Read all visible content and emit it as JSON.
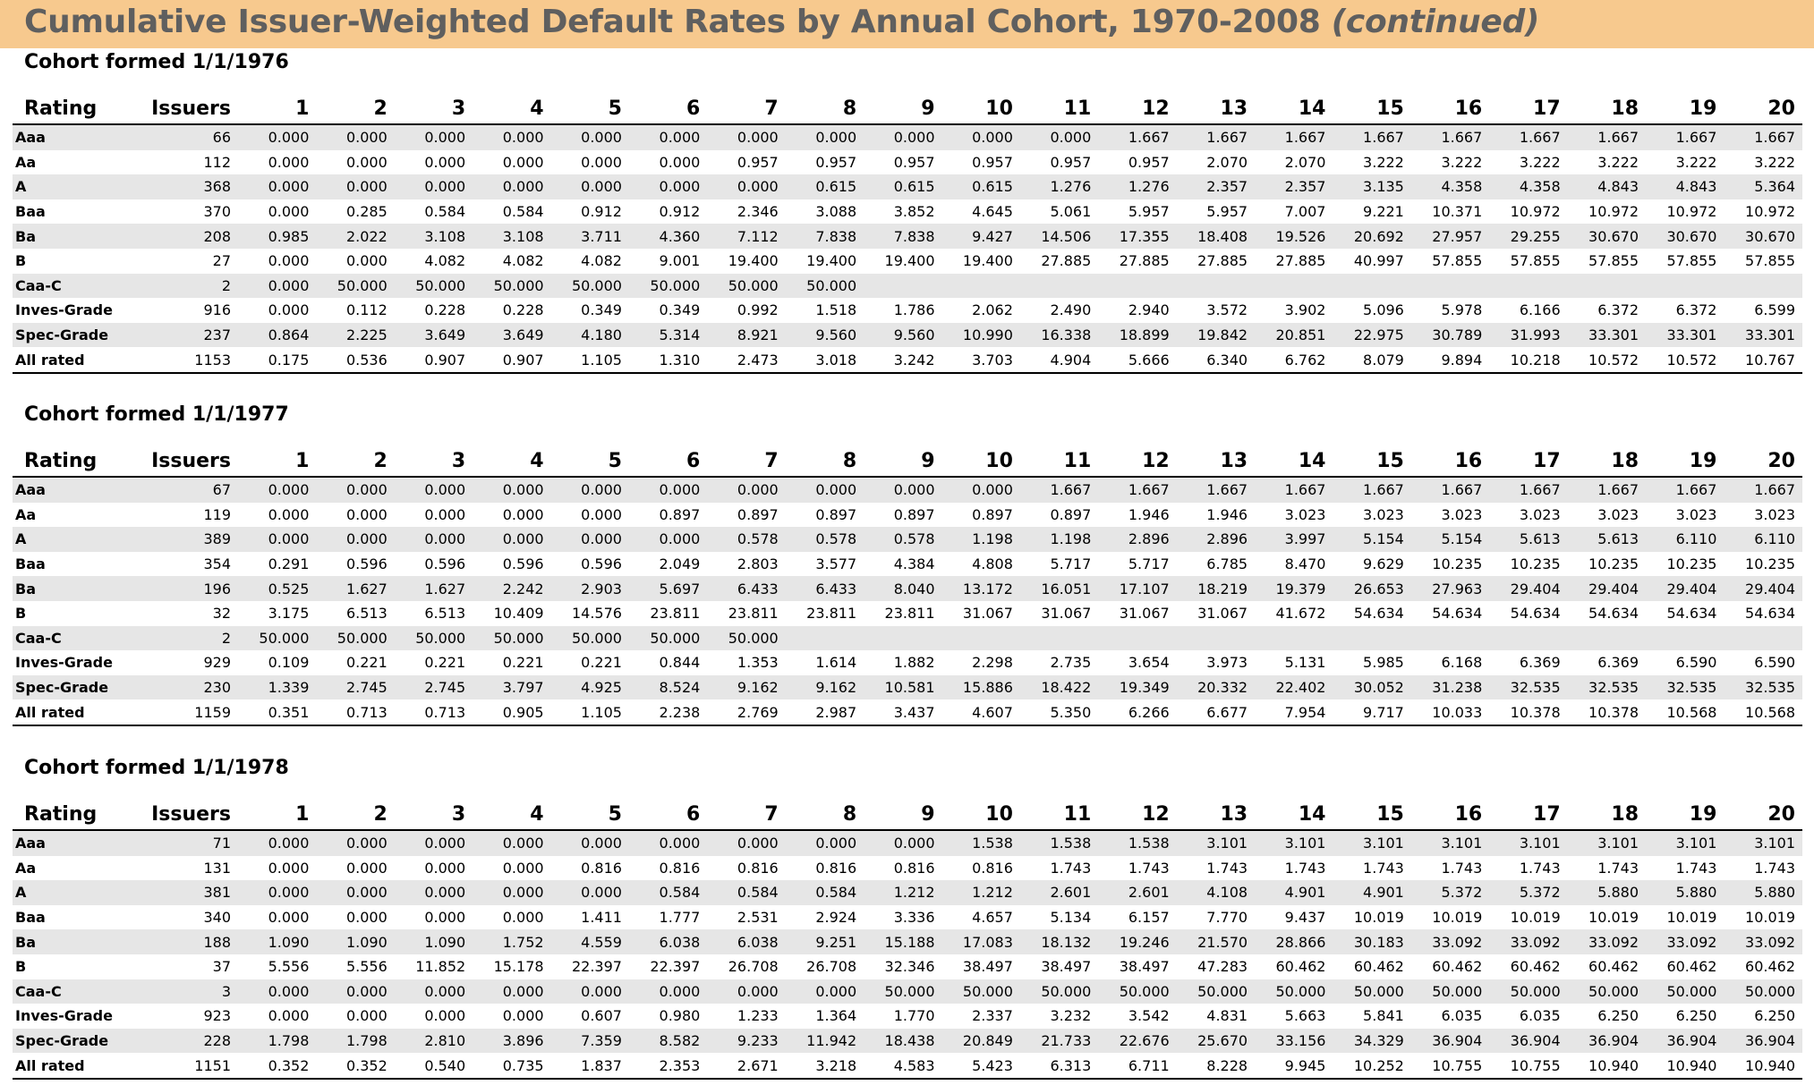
{
  "header": {
    "title": "Cumulative Issuer-Weighted Default Rates by Annual Cohort, 1970-2008",
    "title_suffix": "(continued)"
  },
  "columns": {
    "rating": "Rating",
    "issuers": "Issuers",
    "years": [
      "1",
      "2",
      "3",
      "4",
      "5",
      "6",
      "7",
      "8",
      "9",
      "10",
      "11",
      "12",
      "13",
      "14",
      "15",
      "16",
      "17",
      "18",
      "19",
      "20"
    ]
  },
  "cohorts": [
    {
      "title": "Cohort formed 1/1/1976",
      "rows": [
        {
          "rating": "Aaa",
          "issuers": "66",
          "values": [
            "0.000",
            "0.000",
            "0.000",
            "0.000",
            "0.000",
            "0.000",
            "0.000",
            "0.000",
            "0.000",
            "0.000",
            "0.000",
            "1.667",
            "1.667",
            "1.667",
            "1.667",
            "1.667",
            "1.667",
            "1.667",
            "1.667",
            "1.667"
          ]
        },
        {
          "rating": "Aa",
          "issuers": "112",
          "values": [
            "0.000",
            "0.000",
            "0.000",
            "0.000",
            "0.000",
            "0.000",
            "0.957",
            "0.957",
            "0.957",
            "0.957",
            "0.957",
            "0.957",
            "2.070",
            "2.070",
            "3.222",
            "3.222",
            "3.222",
            "3.222",
            "3.222",
            "3.222"
          ]
        },
        {
          "rating": "A",
          "issuers": "368",
          "values": [
            "0.000",
            "0.000",
            "0.000",
            "0.000",
            "0.000",
            "0.000",
            "0.000",
            "0.615",
            "0.615",
            "0.615",
            "1.276",
            "1.276",
            "2.357",
            "2.357",
            "3.135",
            "4.358",
            "4.358",
            "4.843",
            "4.843",
            "5.364"
          ]
        },
        {
          "rating": "Baa",
          "issuers": "370",
          "values": [
            "0.000",
            "0.285",
            "0.584",
            "0.584",
            "0.912",
            "0.912",
            "2.346",
            "3.088",
            "3.852",
            "4.645",
            "5.061",
            "5.957",
            "5.957",
            "7.007",
            "9.221",
            "10.371",
            "10.972",
            "10.972",
            "10.972",
            "10.972"
          ]
        },
        {
          "rating": "Ba",
          "issuers": "208",
          "values": [
            "0.985",
            "2.022",
            "3.108",
            "3.108",
            "3.711",
            "4.360",
            "7.112",
            "7.838",
            "7.838",
            "9.427",
            "14.506",
            "17.355",
            "18.408",
            "19.526",
            "20.692",
            "27.957",
            "29.255",
            "30.670",
            "30.670",
            "30.670"
          ]
        },
        {
          "rating": "B",
          "issuers": "27",
          "values": [
            "0.000",
            "0.000",
            "4.082",
            "4.082",
            "4.082",
            "9.001",
            "19.400",
            "19.400",
            "19.400",
            "19.400",
            "27.885",
            "27.885",
            "27.885",
            "27.885",
            "40.997",
            "57.855",
            "57.855",
            "57.855",
            "57.855",
            "57.855"
          ]
        },
        {
          "rating": "Caa-C",
          "issuers": "2",
          "values": [
            "0.000",
            "50.000",
            "50.000",
            "50.000",
            "50.000",
            "50.000",
            "50.000",
            "50.000",
            "",
            "",
            "",
            "",
            "",
            "",
            "",
            "",
            "",
            "",
            "",
            ""
          ]
        },
        {
          "rating": "Inves-Grade",
          "issuers": "916",
          "values": [
            "0.000",
            "0.112",
            "0.228",
            "0.228",
            "0.349",
            "0.349",
            "0.992",
            "1.518",
            "1.786",
            "2.062",
            "2.490",
            "2.940",
            "3.572",
            "3.902",
            "5.096",
            "5.978",
            "6.166",
            "6.372",
            "6.372",
            "6.599"
          ]
        },
        {
          "rating": "Spec-Grade",
          "issuers": "237",
          "values": [
            "0.864",
            "2.225",
            "3.649",
            "3.649",
            "4.180",
            "5.314",
            "8.921",
            "9.560",
            "9.560",
            "10.990",
            "16.338",
            "18.899",
            "19.842",
            "20.851",
            "22.975",
            "30.789",
            "31.993",
            "33.301",
            "33.301",
            "33.301"
          ]
        },
        {
          "rating": "All rated",
          "issuers": "1153",
          "values": [
            "0.175",
            "0.536",
            "0.907",
            "0.907",
            "1.105",
            "1.310",
            "2.473",
            "3.018",
            "3.242",
            "3.703",
            "4.904",
            "5.666",
            "6.340",
            "6.762",
            "8.079",
            "9.894",
            "10.218",
            "10.572",
            "10.572",
            "10.767"
          ]
        }
      ]
    },
    {
      "title": "Cohort formed 1/1/1977",
      "rows": [
        {
          "rating": "Aaa",
          "issuers": "67",
          "values": [
            "0.000",
            "0.000",
            "0.000",
            "0.000",
            "0.000",
            "0.000",
            "0.000",
            "0.000",
            "0.000",
            "0.000",
            "1.667",
            "1.667",
            "1.667",
            "1.667",
            "1.667",
            "1.667",
            "1.667",
            "1.667",
            "1.667",
            "1.667"
          ]
        },
        {
          "rating": "Aa",
          "issuers": "119",
          "values": [
            "0.000",
            "0.000",
            "0.000",
            "0.000",
            "0.000",
            "0.897",
            "0.897",
            "0.897",
            "0.897",
            "0.897",
            "0.897",
            "1.946",
            "1.946",
            "3.023",
            "3.023",
            "3.023",
            "3.023",
            "3.023",
            "3.023",
            "3.023"
          ]
        },
        {
          "rating": "A",
          "issuers": "389",
          "values": [
            "0.000",
            "0.000",
            "0.000",
            "0.000",
            "0.000",
            "0.000",
            "0.578",
            "0.578",
            "0.578",
            "1.198",
            "1.198",
            "2.896",
            "2.896",
            "3.997",
            "5.154",
            "5.154",
            "5.613",
            "5.613",
            "6.110",
            "6.110"
          ]
        },
        {
          "rating": "Baa",
          "issuers": "354",
          "values": [
            "0.291",
            "0.596",
            "0.596",
            "0.596",
            "0.596",
            "2.049",
            "2.803",
            "3.577",
            "4.384",
            "4.808",
            "5.717",
            "5.717",
            "6.785",
            "8.470",
            "9.629",
            "10.235",
            "10.235",
            "10.235",
            "10.235",
            "10.235"
          ]
        },
        {
          "rating": "Ba",
          "issuers": "196",
          "values": [
            "0.525",
            "1.627",
            "1.627",
            "2.242",
            "2.903",
            "5.697",
            "6.433",
            "6.433",
            "8.040",
            "13.172",
            "16.051",
            "17.107",
            "18.219",
            "19.379",
            "26.653",
            "27.963",
            "29.404",
            "29.404",
            "29.404",
            "29.404"
          ]
        },
        {
          "rating": "B",
          "issuers": "32",
          "values": [
            "3.175",
            "6.513",
            "6.513",
            "10.409",
            "14.576",
            "23.811",
            "23.811",
            "23.811",
            "23.811",
            "31.067",
            "31.067",
            "31.067",
            "31.067",
            "41.672",
            "54.634",
            "54.634",
            "54.634",
            "54.634",
            "54.634",
            "54.634"
          ]
        },
        {
          "rating": "Caa-C",
          "issuers": "2",
          "values": [
            "50.000",
            "50.000",
            "50.000",
            "50.000",
            "50.000",
            "50.000",
            "50.000",
            "",
            "",
            "",
            "",
            "",
            "",
            "",
            "",
            "",
            "",
            "",
            "",
            ""
          ]
        },
        {
          "rating": "Inves-Grade",
          "issuers": "929",
          "values": [
            "0.109",
            "0.221",
            "0.221",
            "0.221",
            "0.221",
            "0.844",
            "1.353",
            "1.614",
            "1.882",
            "2.298",
            "2.735",
            "3.654",
            "3.973",
            "5.131",
            "5.985",
            "6.168",
            "6.369",
            "6.369",
            "6.590",
            "6.590"
          ]
        },
        {
          "rating": "Spec-Grade",
          "issuers": "230",
          "values": [
            "1.339",
            "2.745",
            "2.745",
            "3.797",
            "4.925",
            "8.524",
            "9.162",
            "9.162",
            "10.581",
            "15.886",
            "18.422",
            "19.349",
            "20.332",
            "22.402",
            "30.052",
            "31.238",
            "32.535",
            "32.535",
            "32.535",
            "32.535"
          ]
        },
        {
          "rating": "All rated",
          "issuers": "1159",
          "values": [
            "0.351",
            "0.713",
            "0.713",
            "0.905",
            "1.105",
            "2.238",
            "2.769",
            "2.987",
            "3.437",
            "4.607",
            "5.350",
            "6.266",
            "6.677",
            "7.954",
            "9.717",
            "10.033",
            "10.378",
            "10.378",
            "10.568",
            "10.568"
          ]
        }
      ]
    },
    {
      "title": "Cohort formed 1/1/1978",
      "rows": [
        {
          "rating": "Aaa",
          "issuers": "71",
          "values": [
            "0.000",
            "0.000",
            "0.000",
            "0.000",
            "0.000",
            "0.000",
            "0.000",
            "0.000",
            "0.000",
            "1.538",
            "1.538",
            "1.538",
            "3.101",
            "3.101",
            "3.101",
            "3.101",
            "3.101",
            "3.101",
            "3.101",
            "3.101"
          ]
        },
        {
          "rating": "Aa",
          "issuers": "131",
          "values": [
            "0.000",
            "0.000",
            "0.000",
            "0.000",
            "0.816",
            "0.816",
            "0.816",
            "0.816",
            "0.816",
            "0.816",
            "1.743",
            "1.743",
            "1.743",
            "1.743",
            "1.743",
            "1.743",
            "1.743",
            "1.743",
            "1.743",
            "1.743"
          ]
        },
        {
          "rating": "A",
          "issuers": "381",
          "values": [
            "0.000",
            "0.000",
            "0.000",
            "0.000",
            "0.000",
            "0.584",
            "0.584",
            "0.584",
            "1.212",
            "1.212",
            "2.601",
            "2.601",
            "4.108",
            "4.901",
            "4.901",
            "5.372",
            "5.372",
            "5.880",
            "5.880",
            "5.880"
          ]
        },
        {
          "rating": "Baa",
          "issuers": "340",
          "values": [
            "0.000",
            "0.000",
            "0.000",
            "0.000",
            "1.411",
            "1.777",
            "2.531",
            "2.924",
            "3.336",
            "4.657",
            "5.134",
            "6.157",
            "7.770",
            "9.437",
            "10.019",
            "10.019",
            "10.019",
            "10.019",
            "10.019",
            "10.019"
          ]
        },
        {
          "rating": "Ba",
          "issuers": "188",
          "values": [
            "1.090",
            "1.090",
            "1.090",
            "1.752",
            "4.559",
            "6.038",
            "6.038",
            "9.251",
            "15.188",
            "17.083",
            "18.132",
            "19.246",
            "21.570",
            "28.866",
            "30.183",
            "33.092",
            "33.092",
            "33.092",
            "33.092",
            "33.092"
          ]
        },
        {
          "rating": "B",
          "issuers": "37",
          "values": [
            "5.556",
            "5.556",
            "11.852",
            "15.178",
            "22.397",
            "22.397",
            "26.708",
            "26.708",
            "32.346",
            "38.497",
            "38.497",
            "38.497",
            "47.283",
            "60.462",
            "60.462",
            "60.462",
            "60.462",
            "60.462",
            "60.462",
            "60.462"
          ]
        },
        {
          "rating": "Caa-C",
          "issuers": "3",
          "values": [
            "0.000",
            "0.000",
            "0.000",
            "0.000",
            "0.000",
            "0.000",
            "0.000",
            "0.000",
            "50.000",
            "50.000",
            "50.000",
            "50.000",
            "50.000",
            "50.000",
            "50.000",
            "50.000",
            "50.000",
            "50.000",
            "50.000",
            "50.000"
          ]
        },
        {
          "rating": "Inves-Grade",
          "issuers": "923",
          "values": [
            "0.000",
            "0.000",
            "0.000",
            "0.000",
            "0.607",
            "0.980",
            "1.233",
            "1.364",
            "1.770",
            "2.337",
            "3.232",
            "3.542",
            "4.831",
            "5.663",
            "5.841",
            "6.035",
            "6.035",
            "6.250",
            "6.250",
            "6.250"
          ]
        },
        {
          "rating": "Spec-Grade",
          "issuers": "228",
          "values": [
            "1.798",
            "1.798",
            "2.810",
            "3.896",
            "7.359",
            "8.582",
            "9.233",
            "11.942",
            "18.438",
            "20.849",
            "21.733",
            "22.676",
            "25.670",
            "33.156",
            "34.329",
            "36.904",
            "36.904",
            "36.904",
            "36.904",
            "36.904"
          ]
        },
        {
          "rating": "All rated",
          "issuers": "1151",
          "values": [
            "0.352",
            "0.352",
            "0.540",
            "0.735",
            "1.837",
            "2.353",
            "2.671",
            "3.218",
            "4.583",
            "5.423",
            "6.313",
            "6.711",
            "8.228",
            "9.945",
            "10.252",
            "10.755",
            "10.755",
            "10.940",
            "10.940",
            "10.940"
          ]
        }
      ]
    }
  ],
  "colors": {
    "title_background": "#f7c98e",
    "title_text": "#5f5f5f",
    "row_shade": "#e6e6e6"
  }
}
